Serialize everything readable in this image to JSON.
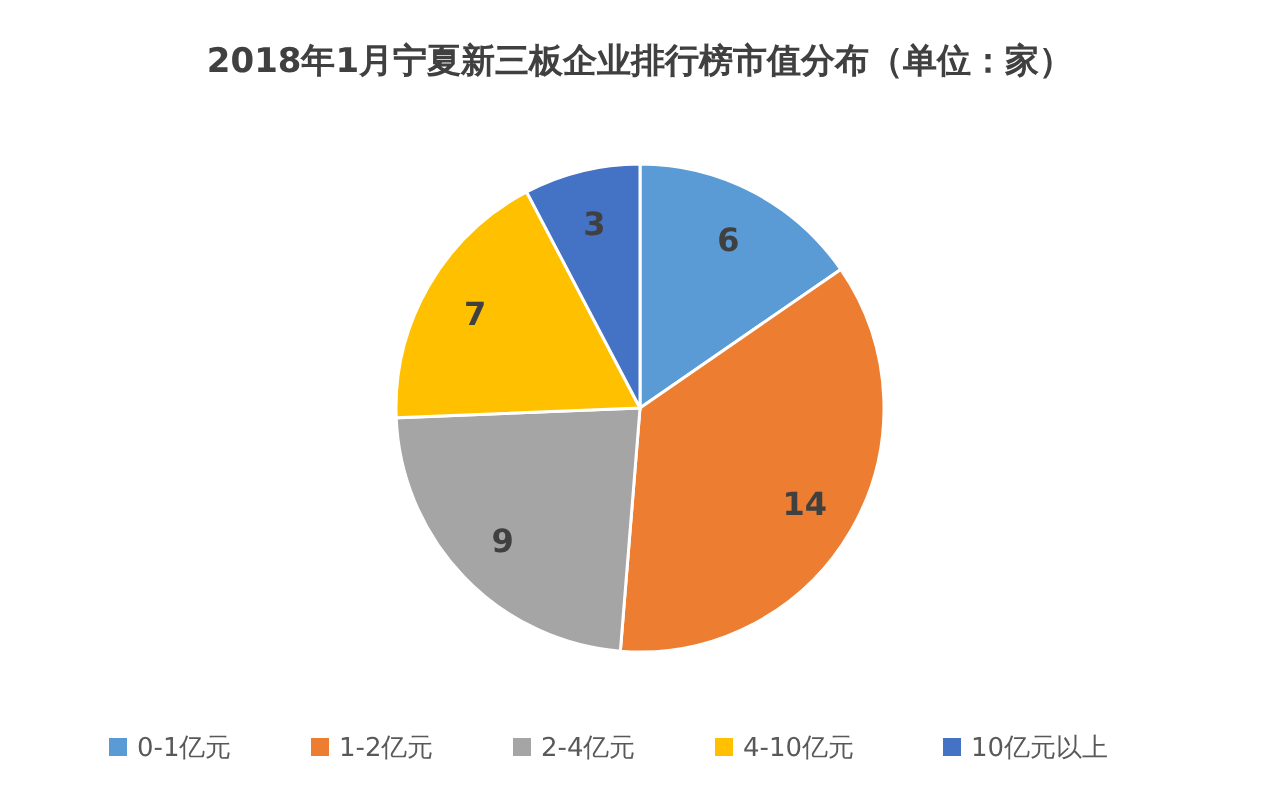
{
  "chart_data": {
    "type": "pie",
    "title": "2018年1月宁夏新三板企业排行榜市值分布（单位：家）",
    "categories": [
      "0-1亿元",
      "1-2亿元",
      "2-4亿元",
      "4-10亿元",
      "10亿元以上"
    ],
    "values": [
      6,
      14,
      9,
      7,
      3
    ],
    "colors": [
      "#5b9bd5",
      "#ed7d31",
      "#a5a5a5",
      "#ffc000",
      "#4472c4"
    ],
    "data_labels": true,
    "legend": "bottom"
  }
}
